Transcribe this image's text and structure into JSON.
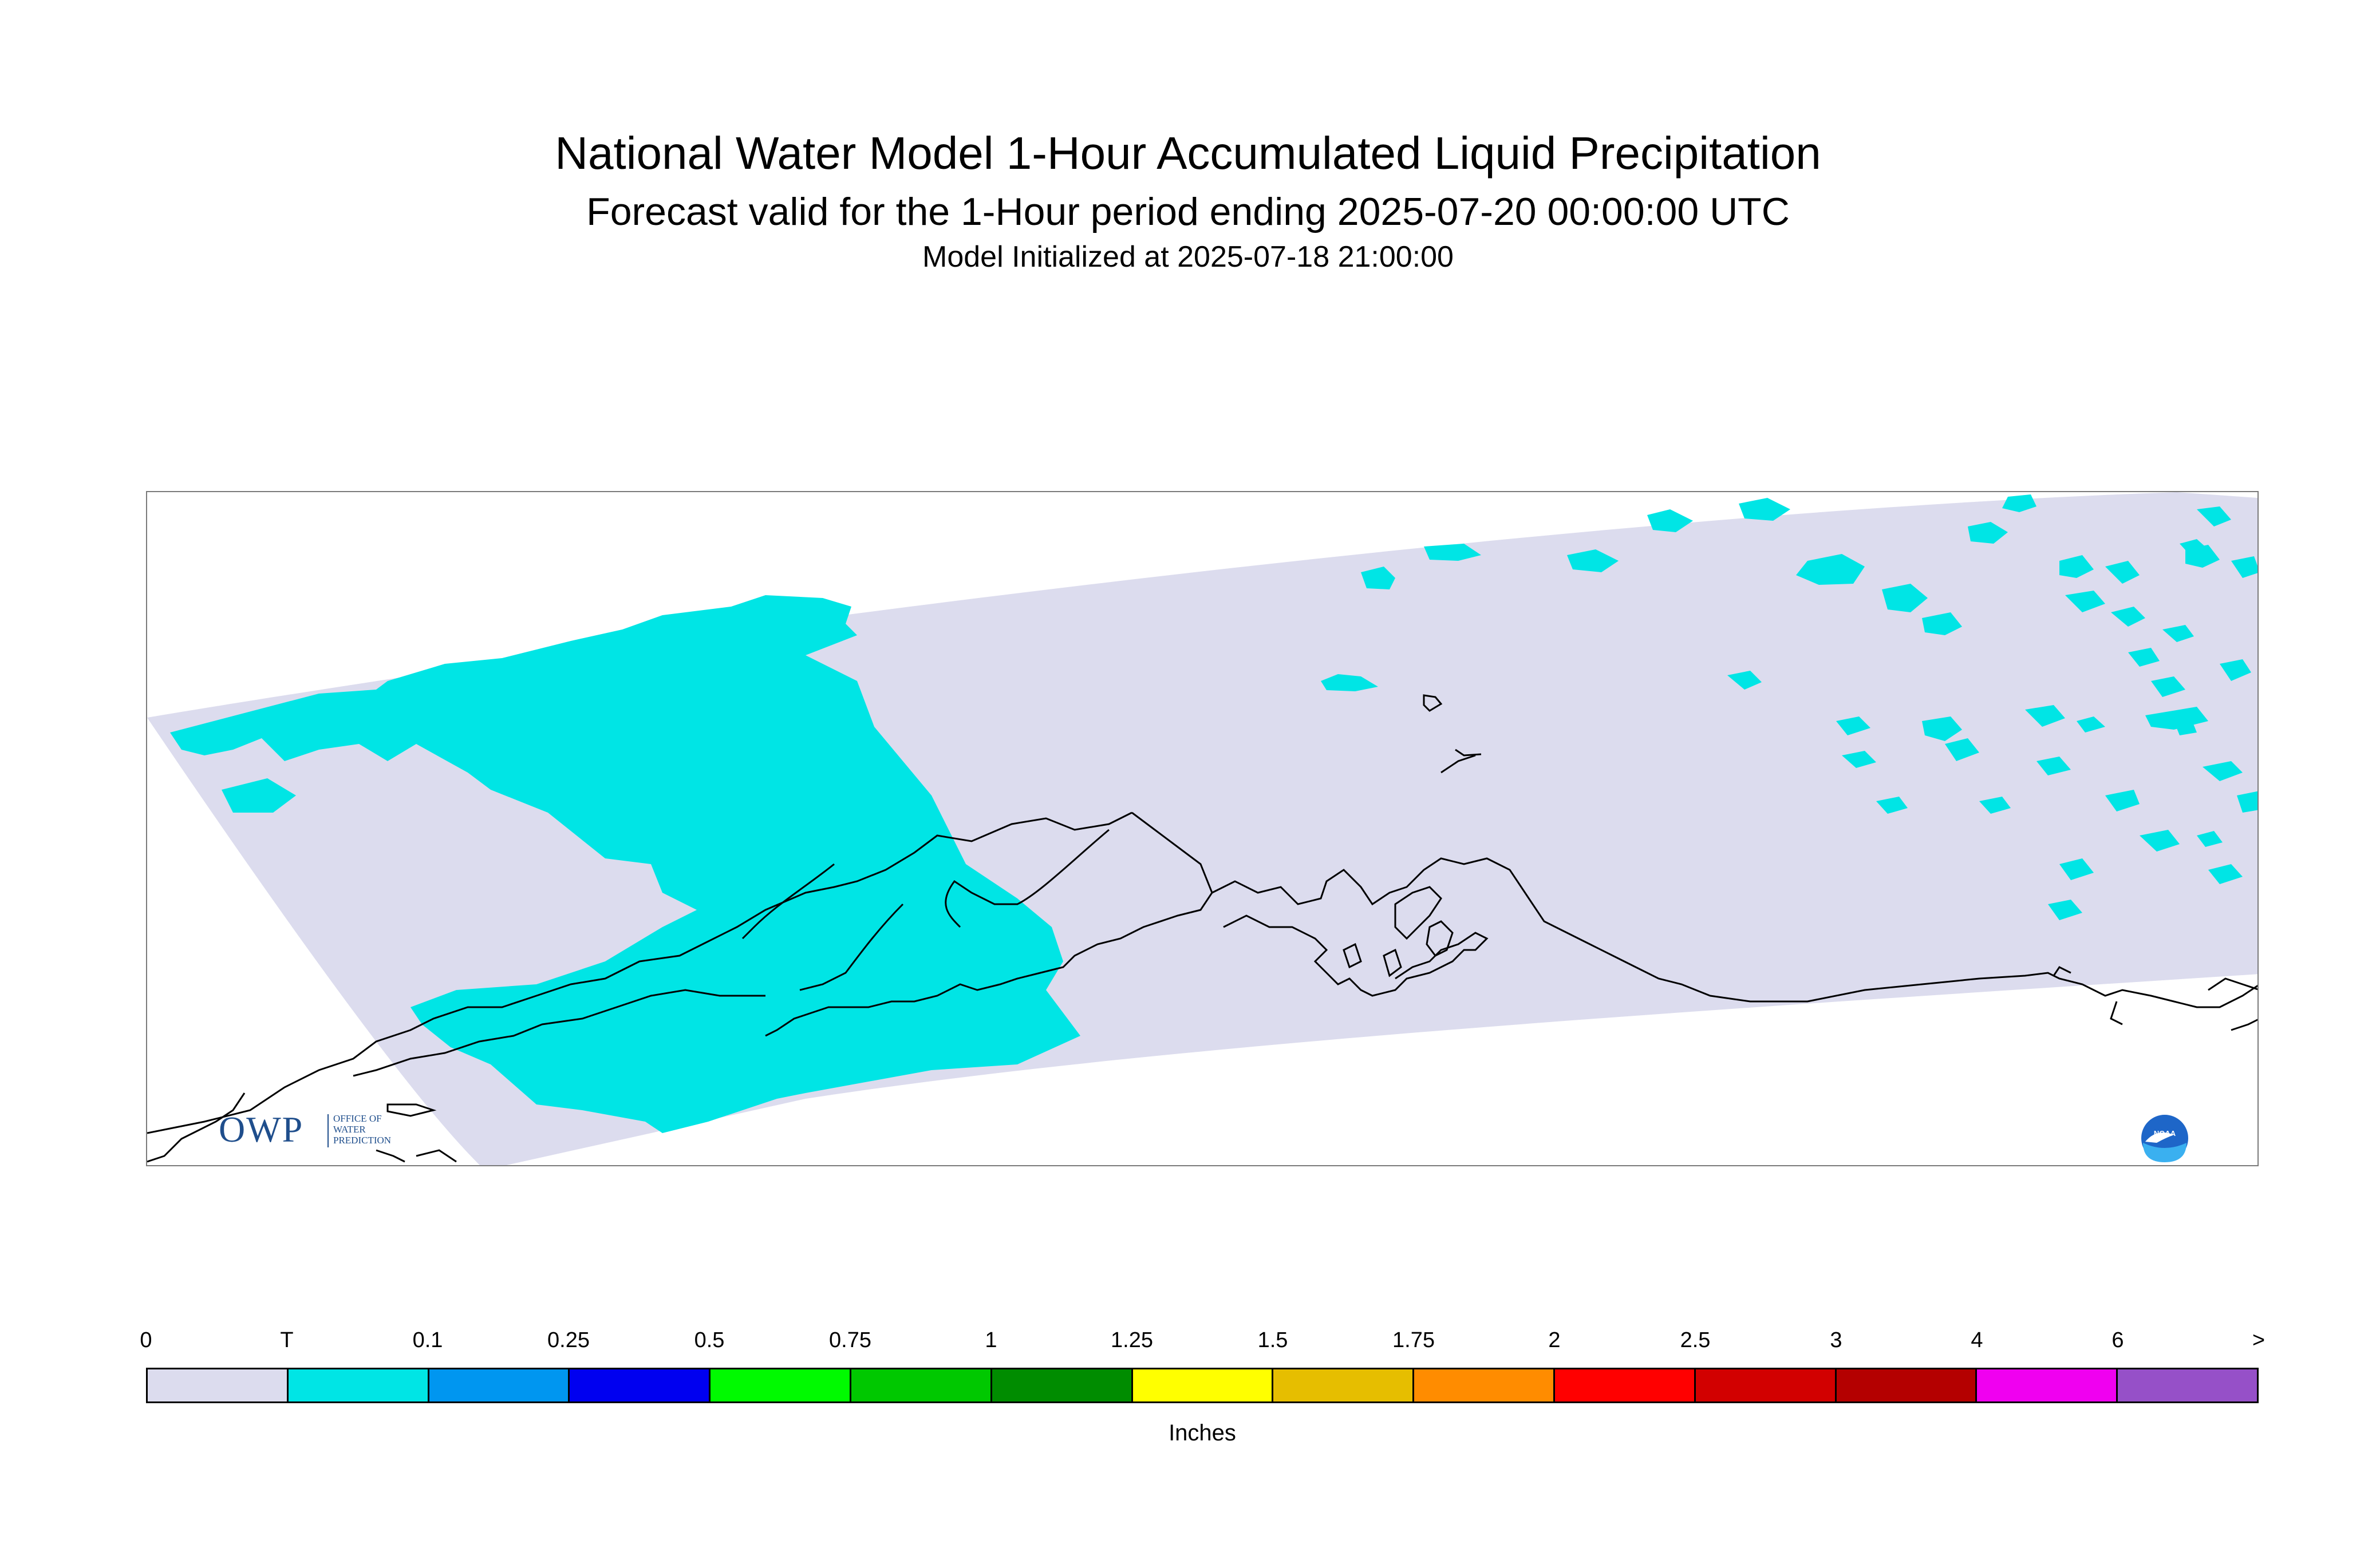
{
  "title": "National Water Model 1-Hour Accumulated Liquid Precipitation",
  "subtitle": "Forecast valid for the 1-Hour period ending 2025-07-20 00:00:00 UTC",
  "init": "Model Initialized at 2025-07-18 21:00:00",
  "logos": {
    "owp_letters": "OWP",
    "owp_sub": [
      "OFFICE OF",
      "WATER",
      "PREDICTION"
    ],
    "noaa_text": "NOAA"
  },
  "legend": {
    "units": "Inches",
    "ticks": [
      "0",
      "T",
      "0.1",
      "0.25",
      "0.5",
      "0.75",
      "1",
      "1.25",
      "1.5",
      "1.75",
      "2",
      "2.5",
      "3",
      "4",
      "6",
      ">"
    ],
    "colors": [
      "#dcdcee",
      "#00e5e5",
      "#0096f0",
      "#0000f0",
      "#00fa00",
      "#00c800",
      "#008c00",
      "#ffff00",
      "#e6be00",
      "#ff8c00",
      "#ff0000",
      "#d20000",
      "#b40000",
      "#f000f0",
      "#9650c8"
    ]
  },
  "map": {
    "domain_color": "#dcdcee",
    "precip_color": "#00e5e5",
    "coast_color": "#000000"
  }
}
